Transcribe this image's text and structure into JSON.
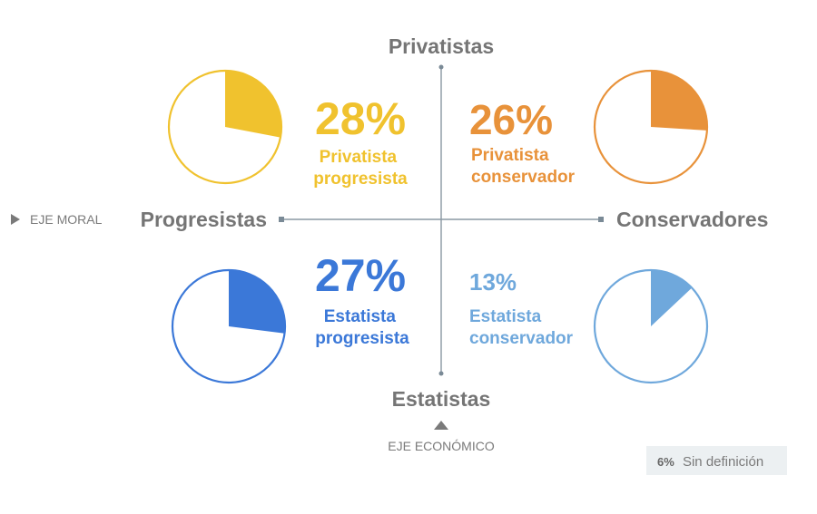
{
  "chart_data": {
    "type": "pie",
    "axes": {
      "vertical": {
        "top_label": "Privatistas",
        "bottom_label": "Estatistas",
        "name": "EJE ECONÓMICO"
      },
      "horizontal": {
        "left_label": "Progresistas",
        "right_label": "Conservadores",
        "name": "EJE MORAL"
      }
    },
    "quadrants": [
      {
        "id": "pp",
        "value": 28,
        "value_label": "28%",
        "label_lines": [
          "Privatista",
          "progresista"
        ],
        "color": "#F0C22E"
      },
      {
        "id": "pc",
        "value": 26,
        "value_label": "26%",
        "label_lines": [
          "Privatista",
          "conservador"
        ],
        "color": "#E8923A"
      },
      {
        "id": "ep",
        "value": 27,
        "value_label": "27%",
        "label_lines": [
          "Estatista",
          "progresista"
        ],
        "color": "#3B78D8"
      },
      {
        "id": "ec",
        "value": 13,
        "value_label": "13%",
        "label_lines": [
          "Estatista",
          "conservador"
        ],
        "color": "#6FA8DC"
      }
    ],
    "undefined": {
      "value": 6,
      "value_label": "6%",
      "label": "Sin definición"
    }
  },
  "colors": {
    "axis": "#7A8A96",
    "axis_text": "#757575",
    "note_bg": "#ECF0F2"
  }
}
